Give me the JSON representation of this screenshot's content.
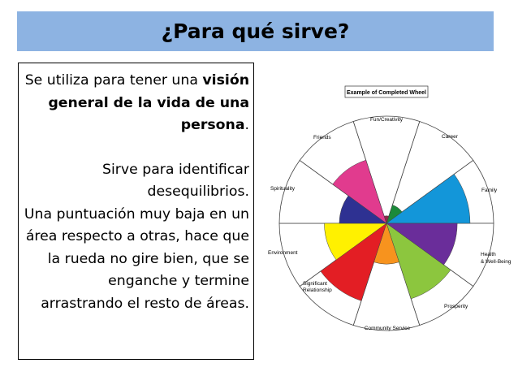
{
  "title": "¿Para qué sirve?",
  "body": {
    "p1_pre": "Se utiliza para tener una ",
    "p1_bold": "visión general de la vida de una persona",
    "p1_post": ".",
    "p2": "Sirve para identificar desequilibrios.",
    "p3": "Una puntuación muy baja en un área respecto a otras, hace que la rueda no gire bien, que se enganche y termine arrastrando el resto de áreas."
  },
  "wheel": {
    "caption": "Example of Completed Wheel",
    "labels": {
      "fun": "Fun/Creativity",
      "career": "Career",
      "family": "Family",
      "health_1": "Health",
      "health_2": "& Well-Being",
      "prosperity": "Prosperity",
      "community": "Community Service",
      "significant_1": "Significant",
      "significant_2": "Relationship",
      "environment": "Environment",
      "spirituality": "Spirituality",
      "friends": "Friends"
    },
    "segments": [
      {
        "area": "Career",
        "color": "#1b8a3a",
        "level": 0.18
      },
      {
        "area": "Family",
        "color": "#1396d9",
        "level": 0.78
      },
      {
        "area": "Health & Well-Being",
        "color": "#6a2d9a",
        "level": 0.66
      },
      {
        "area": "Prosperity",
        "color": "#8cc63e",
        "level": 0.74
      },
      {
        "area": "Community Service",
        "color": "#f7931e",
        "level": 0.38
      },
      {
        "area": "Significant Relationship",
        "color": "#e31e24",
        "level": 0.76
      },
      {
        "area": "Environment",
        "color": "#fff100",
        "level": 0.58
      },
      {
        "area": "Spirituality",
        "color": "#2e3192",
        "level": 0.44
      },
      {
        "area": "Friends",
        "color": "#e13b8e",
        "level": 0.62
      },
      {
        "area": "Fun/Creativity",
        "color": "#8b2a4a",
        "level": 0.07
      }
    ]
  }
}
